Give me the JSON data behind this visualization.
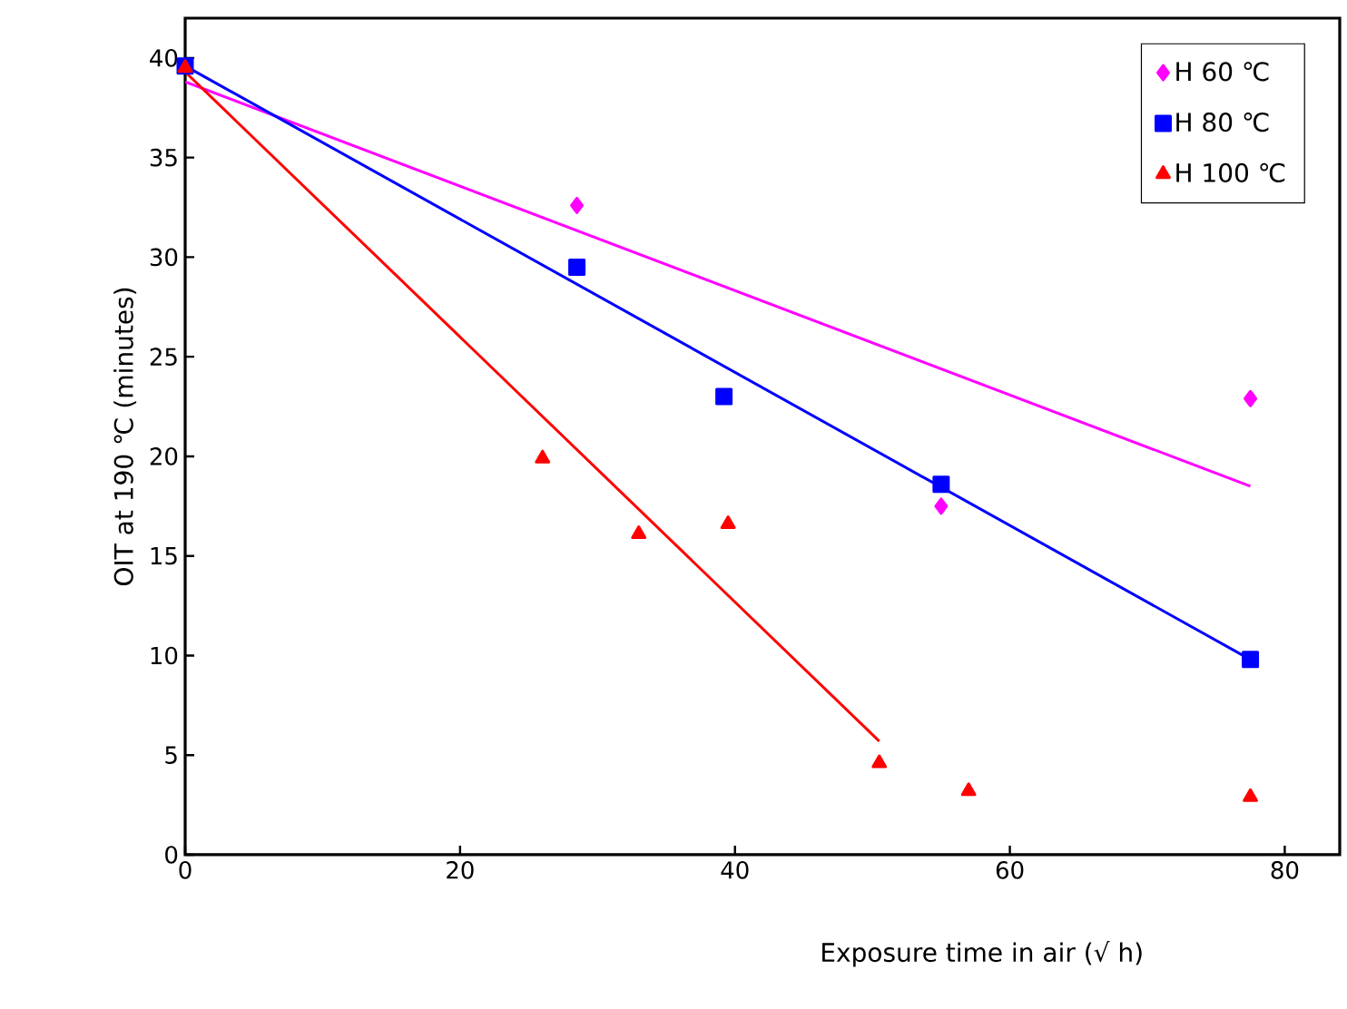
{
  "chart_data": {
    "type": "scatter",
    "xlabel": "Exposure time in air (√ h)",
    "ylabel": "OIT at 190 ℃ (minutes)",
    "xlim": [
      0,
      84
    ],
    "ylim": [
      0,
      42
    ],
    "xticks": [
      0,
      20,
      40,
      60,
      80
    ],
    "yticks": [
      0,
      5,
      10,
      15,
      20,
      25,
      30,
      35,
      40
    ],
    "legend": "top right",
    "grid": false,
    "series": [
      {
        "name": "H 60 ℃",
        "color": "#ff00ff",
        "marker": "diamond",
        "x": [
          28.5,
          55,
          77.5
        ],
        "values": [
          32.6,
          17.5,
          22.9
        ]
      },
      {
        "name": "H 80 ℃",
        "color": "#0000ff",
        "marker": "square",
        "x": [
          0,
          28.5,
          39.2,
          55,
          77.5
        ],
        "values": [
          39.6,
          29.5,
          23.0,
          18.6,
          9.8
        ]
      },
      {
        "name": "H 100 ℃",
        "color": "#ff0000",
        "marker": "triangle",
        "x": [
          0,
          26,
          33,
          39.5,
          50.5,
          57,
          77.5
        ],
        "values": [
          39.5,
          19.9,
          16.1,
          16.6,
          4.6,
          3.2,
          2.9
        ]
      },
      {
        "type": "line",
        "color": "#ff00ff",
        "marker": "none",
        "x": [
          0,
          77.5
        ],
        "values": [
          38.8,
          18.5
        ]
      },
      {
        "type": "line",
        "color": "#0000ff",
        "marker": "none",
        "x": [
          0,
          77.5
        ],
        "values": [
          39.6,
          9.8
        ]
      },
      {
        "type": "line",
        "color": "#ff0000",
        "marker": "none",
        "x": [
          0,
          50.5
        ],
        "values": [
          39.3,
          5.7
        ]
      }
    ]
  }
}
